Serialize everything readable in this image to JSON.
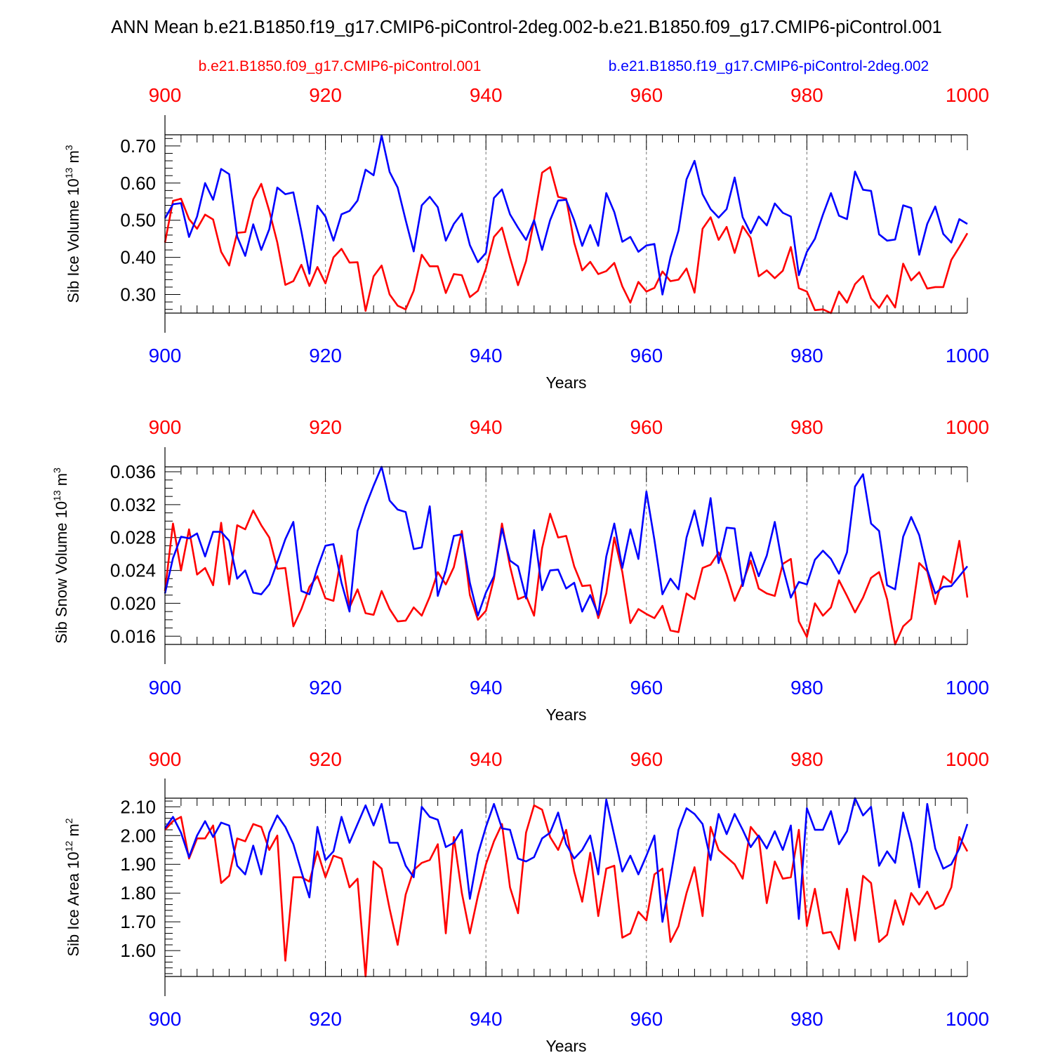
{
  "title": "ANN Mean b.e21.B1850.f19_g17.CMIP6-piControl-2deg.002-b.e21.B1850.f09_g17.CMIP6-piControl.001",
  "legend": {
    "red_label": "b.e21.B1850.f09_g17.CMIP6-piControl.001",
    "blue_label": "b.e21.B1850.f19_g17.CMIP6-piControl-2deg.002"
  },
  "colors": {
    "red": "#ff0000",
    "blue": "#0000ff",
    "axis": "#000000",
    "grid": "#777777"
  },
  "chart_data": [
    {
      "type": "line",
      "title": "",
      "xlabel": "Years",
      "ylabel": "Sib Ice Volume 10",
      "ylabel_exp": "13",
      "ylabel_unit": " m",
      "ylabel_unit_exp": "3",
      "xlim": [
        900,
        1000
      ],
      "ylim": [
        0.25,
        0.73
      ],
      "xticks": [
        900,
        920,
        940,
        960,
        980,
        1000
      ],
      "xtick_labels": [
        "900",
        "920",
        "940",
        "960",
        "980",
        "1000"
      ],
      "yticks": [
        0.3,
        0.4,
        0.5,
        0.6,
        0.7
      ],
      "ytick_labels": [
        "0.30",
        "0.40",
        "0.50",
        "0.60",
        "0.70"
      ],
      "yminor": 0.02,
      "x": [
        900,
        901,
        902,
        903,
        904,
        905,
        906,
        907,
        908,
        909,
        910,
        911,
        912,
        913,
        914,
        915,
        916,
        917,
        918,
        919,
        920,
        921,
        922,
        923,
        924,
        925,
        926,
        927,
        928,
        929,
        930,
        931,
        932,
        933,
        934,
        935,
        936,
        937,
        938,
        939,
        940,
        941,
        942,
        943,
        944,
        945,
        946,
        947,
        948,
        949,
        950,
        951,
        952,
        953,
        954,
        955,
        956,
        957,
        958,
        959,
        960,
        961,
        962,
        963,
        964,
        965,
        966,
        967,
        968,
        969,
        970,
        971,
        972,
        973,
        974,
        975,
        976,
        977,
        978,
        979,
        980,
        981,
        982,
        983,
        984,
        985,
        986,
        987,
        988,
        989,
        990,
        991,
        992,
        993,
        994,
        995,
        996,
        997,
        998,
        999,
        1000
      ],
      "series": [
        {
          "name": "b.e21.B1850.f09_g17.CMIP6-piControl.001",
          "color": "red",
          "values": [
            0.44,
            0.552,
            0.558,
            0.503,
            0.477,
            0.515,
            0.502,
            0.415,
            0.378,
            0.466,
            0.468,
            0.556,
            0.598,
            0.525,
            0.44,
            0.326,
            0.336,
            0.38,
            0.323,
            0.374,
            0.33,
            0.4,
            0.423,
            0.386,
            0.387,
            0.256,
            0.349,
            0.378,
            0.3,
            0.27,
            0.26,
            0.31,
            0.407,
            0.376,
            0.376,
            0.304,
            0.355,
            0.352,
            0.293,
            0.31,
            0.37,
            0.455,
            0.48,
            0.4,
            0.325,
            0.39,
            0.5,
            0.628,
            0.643,
            0.563,
            0.558,
            0.44,
            0.365,
            0.388,
            0.355,
            0.363,
            0.385,
            0.322,
            0.278,
            0.334,
            0.308,
            0.318,
            0.362,
            0.336,
            0.34,
            0.37,
            0.305,
            0.477,
            0.508,
            0.447,
            0.482,
            0.412,
            0.484,
            0.452,
            0.349,
            0.365,
            0.344,
            0.364,
            0.428,
            0.317,
            0.308,
            0.258,
            0.26,
            0.25,
            0.308,
            0.278,
            0.328,
            0.35,
            0.29,
            0.264,
            0.298,
            0.265,
            0.383,
            0.338,
            0.36,
            0.316,
            0.32,
            0.32,
            0.393,
            0.428,
            0.465
          ]
        },
        {
          "name": "b.e21.B1850.f19_g17.CMIP6-piControl-2deg.002",
          "color": "blue",
          "values": [
            0.505,
            0.543,
            0.546,
            0.455,
            0.51,
            0.6,
            0.555,
            0.638,
            0.624,
            0.456,
            0.404,
            0.489,
            0.42,
            0.476,
            0.588,
            0.57,
            0.575,
            0.47,
            0.356,
            0.539,
            0.51,
            0.445,
            0.516,
            0.525,
            0.553,
            0.636,
            0.621,
            0.728,
            0.63,
            0.588,
            0.5,
            0.416,
            0.54,
            0.563,
            0.535,
            0.445,
            0.49,
            0.518,
            0.433,
            0.387,
            0.412,
            0.56,
            0.583,
            0.516,
            0.48,
            0.447,
            0.5,
            0.42,
            0.5,
            0.553,
            0.555,
            0.5,
            0.431,
            0.487,
            0.431,
            0.573,
            0.522,
            0.442,
            0.455,
            0.415,
            0.432,
            0.436,
            0.3,
            0.4,
            0.472,
            0.61,
            0.66,
            0.57,
            0.53,
            0.507,
            0.53,
            0.615,
            0.508,
            0.465,
            0.51,
            0.486,
            0.545,
            0.52,
            0.51,
            0.352,
            0.415,
            0.45,
            0.515,
            0.573,
            0.512,
            0.503,
            0.631,
            0.582,
            0.579,
            0.462,
            0.445,
            0.448,
            0.54,
            0.533,
            0.407,
            0.49,
            0.537,
            0.463,
            0.44,
            0.503,
            0.49
          ]
        }
      ]
    },
    {
      "type": "line",
      "title": "",
      "xlabel": "Years",
      "ylabel": "Sib Snow Volume 10",
      "ylabel_exp": "13",
      "ylabel_unit": " m",
      "ylabel_unit_exp": "3",
      "xlim": [
        900,
        1000
      ],
      "ylim": [
        0.015,
        0.0366
      ],
      "xticks": [
        900,
        920,
        940,
        960,
        980,
        1000
      ],
      "xtick_labels": [
        "900",
        "920",
        "940",
        "960",
        "980",
        "1000"
      ],
      "yticks": [
        0.016,
        0.02,
        0.024,
        0.028,
        0.032,
        0.036
      ],
      "ytick_labels": [
        "0.016",
        "0.020",
        "0.024",
        "0.028",
        "0.032",
        "0.036"
      ],
      "yminor": 0.001,
      "x": [
        900,
        901,
        902,
        903,
        904,
        905,
        906,
        907,
        908,
        909,
        910,
        911,
        912,
        913,
        914,
        915,
        916,
        917,
        918,
        919,
        920,
        921,
        922,
        923,
        924,
        925,
        926,
        927,
        928,
        929,
        930,
        931,
        932,
        933,
        934,
        935,
        936,
        937,
        938,
        939,
        940,
        941,
        942,
        943,
        944,
        945,
        946,
        947,
        948,
        949,
        950,
        951,
        952,
        953,
        954,
        955,
        956,
        957,
        958,
        959,
        960,
        961,
        962,
        963,
        964,
        965,
        966,
        967,
        968,
        969,
        970,
        971,
        972,
        973,
        974,
        975,
        976,
        977,
        978,
        979,
        980,
        981,
        982,
        983,
        984,
        985,
        986,
        987,
        988,
        989,
        990,
        991,
        992,
        993,
        994,
        995,
        996,
        997,
        998,
        999,
        1000
      ],
      "series": [
        {
          "name": "b.e21.B1850.f09_g17.CMIP6-piControl.001",
          "color": "red",
          "values": [
            0.0215,
            0.0297,
            0.024,
            0.029,
            0.0235,
            0.0243,
            0.0222,
            0.0298,
            0.0223,
            0.0295,
            0.029,
            0.0313,
            0.0295,
            0.028,
            0.0242,
            0.0243,
            0.0172,
            0.0193,
            0.022,
            0.0233,
            0.0206,
            0.0203,
            0.0258,
            0.0195,
            0.0217,
            0.0188,
            0.0186,
            0.0215,
            0.0193,
            0.0178,
            0.0179,
            0.0195,
            0.0185,
            0.0208,
            0.0238,
            0.0223,
            0.0244,
            0.0288,
            0.021,
            0.018,
            0.0191,
            0.023,
            0.0297,
            0.0245,
            0.0205,
            0.0209,
            0.0185,
            0.0267,
            0.0309,
            0.028,
            0.0282,
            0.0245,
            0.0221,
            0.0222,
            0.0182,
            0.0212,
            0.028,
            0.0238,
            0.0176,
            0.0193,
            0.0187,
            0.0182,
            0.0197,
            0.0167,
            0.0165,
            0.0212,
            0.0205,
            0.0243,
            0.0247,
            0.0262,
            0.0235,
            0.0203,
            0.0225,
            0.0252,
            0.0218,
            0.0212,
            0.0209,
            0.0248,
            0.0254,
            0.0178,
            0.0159,
            0.02,
            0.0185,
            0.0195,
            0.0228,
            0.0209,
            0.0189,
            0.0207,
            0.0231,
            0.0238,
            0.0205,
            0.015,
            0.0172,
            0.0181,
            0.0249,
            0.0239,
            0.0199,
            0.0233,
            0.0225,
            0.0276,
            0.0207
          ]
        },
        {
          "name": "b.e21.B1850.f19_g17.CMIP6-piControl-2deg.002",
          "color": "blue",
          "values": [
            0.0212,
            0.0255,
            0.0281,
            0.0279,
            0.0285,
            0.0257,
            0.0287,
            0.0287,
            0.0276,
            0.023,
            0.024,
            0.0213,
            0.0211,
            0.0223,
            0.025,
            0.0278,
            0.0299,
            0.0215,
            0.0211,
            0.0243,
            0.027,
            0.0272,
            0.0225,
            0.019,
            0.0288,
            0.0318,
            0.0343,
            0.0366,
            0.0325,
            0.0314,
            0.0311,
            0.0266,
            0.0268,
            0.0318,
            0.0209,
            0.024,
            0.0282,
            0.0284,
            0.0225,
            0.0185,
            0.0213,
            0.0233,
            0.0291,
            0.0252,
            0.0245,
            0.0206,
            0.0289,
            0.0216,
            0.024,
            0.0241,
            0.0218,
            0.0225,
            0.019,
            0.021,
            0.0186,
            0.0257,
            0.0297,
            0.0243,
            0.029,
            0.0254,
            0.0336,
            0.0277,
            0.0211,
            0.023,
            0.0217,
            0.028,
            0.0313,
            0.027,
            0.0328,
            0.0249,
            0.0292,
            0.0291,
            0.0221,
            0.0262,
            0.0233,
            0.0258,
            0.0299,
            0.0244,
            0.0207,
            0.0226,
            0.0223,
            0.0253,
            0.0264,
            0.0254,
            0.0236,
            0.0262,
            0.0342,
            0.0357,
            0.0297,
            0.0288,
            0.0222,
            0.0217,
            0.0281,
            0.0305,
            0.0283,
            0.0241,
            0.0212,
            0.022,
            0.0221,
            0.0233,
            0.0245
          ]
        }
      ]
    },
    {
      "type": "line",
      "title": "",
      "xlabel": "Years",
      "ylabel": "Sib Ice Area 10",
      "ylabel_exp": "12",
      "ylabel_unit": " m",
      "ylabel_unit_exp": "2",
      "xlim": [
        900,
        1000
      ],
      "ylim": [
        1.51,
        2.13
      ],
      "xticks": [
        900,
        920,
        940,
        960,
        980,
        1000
      ],
      "xtick_labels": [
        "900",
        "920",
        "940",
        "960",
        "980",
        "1000"
      ],
      "yticks": [
        1.6,
        1.7,
        1.8,
        1.9,
        2.0,
        2.1
      ],
      "ytick_labels": [
        "1.60",
        "1.70",
        "1.80",
        "1.90",
        "2.00",
        "2.10"
      ],
      "yminor": 0.02,
      "x": [
        900,
        901,
        902,
        903,
        904,
        905,
        906,
        907,
        908,
        909,
        910,
        911,
        912,
        913,
        914,
        915,
        916,
        917,
        918,
        919,
        920,
        921,
        922,
        923,
        924,
        925,
        926,
        927,
        928,
        929,
        930,
        931,
        932,
        933,
        934,
        935,
        936,
        937,
        938,
        939,
        940,
        941,
        942,
        943,
        944,
        945,
        946,
        947,
        948,
        949,
        950,
        951,
        952,
        953,
        954,
        955,
        956,
        957,
        958,
        959,
        960,
        961,
        962,
        963,
        964,
        965,
        966,
        967,
        968,
        969,
        970,
        971,
        972,
        973,
        974,
        975,
        976,
        977,
        978,
        979,
        980,
        981,
        982,
        983,
        984,
        985,
        986,
        987,
        988,
        989,
        990,
        991,
        992,
        993,
        994,
        995,
        996,
        997,
        998,
        999,
        1000
      ],
      "series": [
        {
          "name": "b.e21.B1850.f09_g17.CMIP6-piControl.001",
          "color": "red",
          "values": [
            2.02,
            2.05,
            2.065,
            1.92,
            1.99,
            1.99,
            2.035,
            1.835,
            1.86,
            1.99,
            1.98,
            2.04,
            2.03,
            1.95,
            2.0,
            1.565,
            1.855,
            1.855,
            1.84,
            1.945,
            1.855,
            1.93,
            1.92,
            1.82,
            1.85,
            1.51,
            1.91,
            1.885,
            1.745,
            1.62,
            1.795,
            1.88,
            1.905,
            1.915,
            1.97,
            1.66,
            1.995,
            1.8,
            1.66,
            1.79,
            1.9,
            1.98,
            2.04,
            1.82,
            1.73,
            2.01,
            2.105,
            2.09,
            1.995,
            1.95,
            2.02,
            1.875,
            1.77,
            1.94,
            1.72,
            1.885,
            1.895,
            1.645,
            1.66,
            1.735,
            1.705,
            1.865,
            1.885,
            1.63,
            1.685,
            1.8,
            1.89,
            1.72,
            2.03,
            1.95,
            1.925,
            1.9,
            1.85,
            2.03,
            1.995,
            1.765,
            1.91,
            1.85,
            1.855,
            2.02,
            1.685,
            1.815,
            1.66,
            1.665,
            1.605,
            1.815,
            1.635,
            1.86,
            1.835,
            1.63,
            1.655,
            1.775,
            1.69,
            1.8,
            1.76,
            1.805,
            1.745,
            1.76,
            1.82,
            1.995,
            1.945
          ]
        },
        {
          "name": "b.e21.B1850.f19_g17.CMIP6-piControl-2deg.002",
          "color": "blue",
          "values": [
            2.025,
            2.065,
            2.01,
            1.925,
            2.0,
            2.05,
            1.995,
            2.045,
            2.035,
            1.895,
            1.865,
            1.965,
            1.865,
            2.01,
            2.07,
            2.03,
            1.97,
            1.875,
            1.785,
            2.03,
            1.915,
            1.945,
            2.065,
            1.975,
            2.04,
            2.105,
            2.035,
            2.11,
            1.975,
            1.975,
            1.895,
            1.855,
            2.1,
            2.065,
            2.055,
            1.96,
            1.975,
            2.02,
            1.78,
            1.935,
            2.03,
            2.11,
            2.025,
            2.02,
            1.92,
            1.91,
            1.925,
            1.99,
            2.01,
            2.08,
            1.97,
            1.92,
            1.95,
            2.0,
            1.865,
            2.125,
            2.0,
            1.875,
            1.93,
            1.865,
            1.93,
            2.0,
            1.7,
            1.855,
            2.02,
            2.095,
            2.075,
            2.04,
            1.915,
            2.075,
            2.005,
            2.075,
            2.02,
            1.96,
            2.0,
            1.955,
            2.015,
            1.95,
            2.035,
            1.71,
            2.095,
            2.02,
            2.02,
            2.085,
            1.97,
            2.015,
            2.13,
            2.07,
            2.1,
            1.895,
            1.945,
            1.905,
            2.08,
            1.975,
            1.82,
            2.11,
            1.955,
            1.885,
            1.9,
            1.955,
            2.04
          ]
        }
      ]
    }
  ]
}
